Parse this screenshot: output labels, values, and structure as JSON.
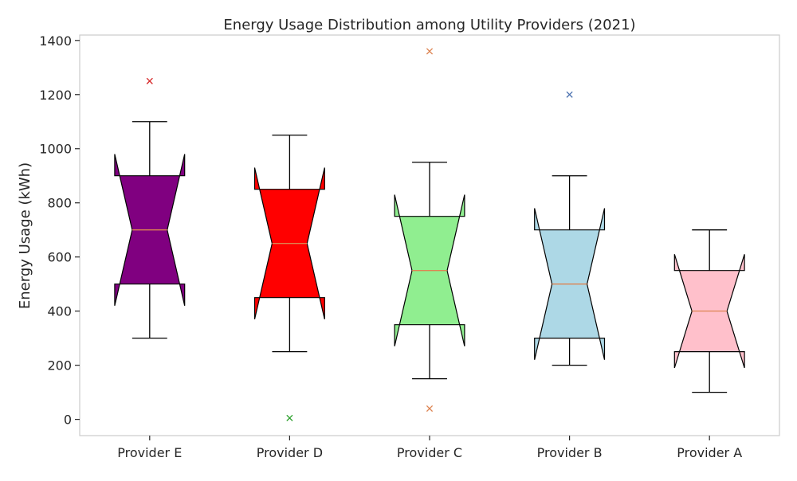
{
  "chart_data": {
    "type": "box",
    "title": "Energy Usage Distribution among Utility Providers (2021)",
    "xlabel": "",
    "ylabel": "Energy Usage (kWh)",
    "ylim": [
      -60,
      1420
    ],
    "yticks": [
      0,
      200,
      400,
      600,
      800,
      1000,
      1200,
      1400
    ],
    "ytick_labels": [
      "0",
      "200",
      "400",
      "600",
      "800",
      "1000",
      "1200",
      "1400"
    ],
    "grid": false,
    "notched": true,
    "categories": [
      "Provider E",
      "Provider D",
      "Provider C",
      "Provider B",
      "Provider A"
    ],
    "boxes": [
      {
        "category": "Provider E",
        "whisker_low": 300,
        "q1": 500,
        "median": 700,
        "q3": 900,
        "whisker_high": 1100,
        "notch_low": 420,
        "notch_high": 980,
        "outliers": [
          1250
        ],
        "fill": "#800080",
        "outlier_color": "#d62728"
      },
      {
        "category": "Provider D",
        "whisker_low": 250,
        "q1": 450,
        "median": 650,
        "q3": 850,
        "whisker_high": 1050,
        "notch_low": 370,
        "notch_high": 930,
        "outliers": [
          5
        ],
        "fill": "#ff0000",
        "outlier_color": "#2ca02c"
      },
      {
        "category": "Provider C",
        "whisker_low": 150,
        "q1": 350,
        "median": 550,
        "q3": 750,
        "whisker_high": 950,
        "notch_low": 270,
        "notch_high": 830,
        "outliers": [
          40,
          1360
        ],
        "fill": "#90ee90",
        "outlier_color": "#dd8452"
      },
      {
        "category": "Provider B",
        "whisker_low": 200,
        "q1": 300,
        "median": 500,
        "q3": 700,
        "whisker_high": 900,
        "notch_low": 220,
        "notch_high": 780,
        "outliers": [
          1200
        ],
        "fill": "#add8e6",
        "outlier_color": "#4c72b0"
      },
      {
        "category": "Provider A",
        "whisker_low": 100,
        "q1": 250,
        "median": 400,
        "q3": 550,
        "whisker_high": 700,
        "notch_low": 190,
        "notch_high": 610,
        "outliers": [],
        "fill": "#ffc0cb",
        "outlier_color": "#dd8452"
      }
    ],
    "median_color": "#dd8452",
    "line_color": "#000000"
  }
}
